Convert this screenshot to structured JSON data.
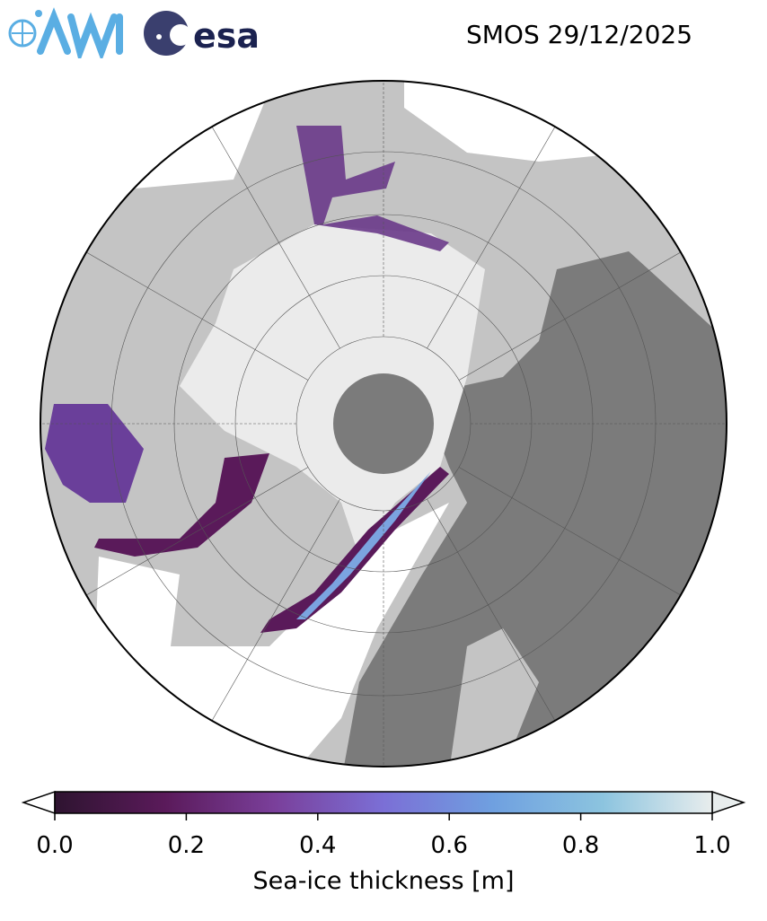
{
  "title": "SMOS 29/12/2025",
  "logos": {
    "awi": "AWI",
    "esa": "esa"
  },
  "map": {
    "projection": "north-polar-stereographic",
    "colors": {
      "land": "#c4c4c4",
      "land_dark": "#7b7b7b",
      "thick_ice": "#ebebeb",
      "ocean": "#ffffff",
      "pole_hole": "#7b7b7b"
    }
  },
  "colorbar": {
    "label": "Sea-ice thickness [m]",
    "ticks": [
      "0.0",
      "0.2",
      "0.4",
      "0.6",
      "0.8",
      "1.0"
    ],
    "range": [
      0.0,
      1.0
    ],
    "extend": "both",
    "stops": [
      "#2e1430",
      "#5a1a5a",
      "#7a3f9a",
      "#7b6fd6",
      "#6fa0e0",
      "#8cc4df",
      "#e8eded"
    ]
  }
}
